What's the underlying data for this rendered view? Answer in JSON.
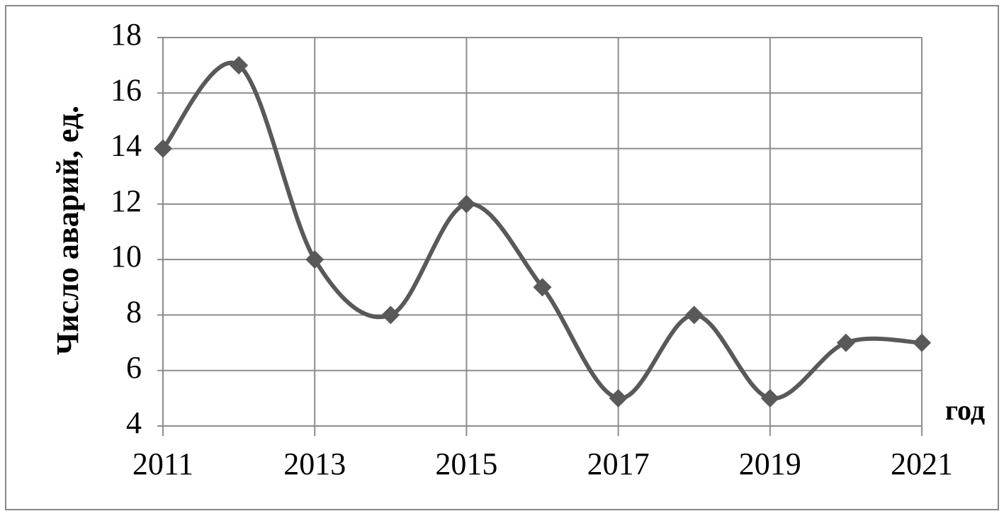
{
  "chart_data": {
    "type": "line",
    "y_label": "Число аварий, ед.",
    "x_label": "год",
    "x": [
      2011,
      2012,
      2013,
      2014,
      2015,
      2016,
      2017,
      2018,
      2019,
      2020,
      2021
    ],
    "values": [
      14,
      17,
      10,
      8,
      12,
      9,
      5,
      8,
      5,
      7,
      7
    ],
    "color": "#595959",
    "smooth": true,
    "marker": "diamond",
    "xlim": [
      2011,
      2021
    ],
    "xticks": [
      2011,
      2013,
      2015,
      2017,
      2019,
      2021
    ],
    "ylim": [
      4,
      18
    ],
    "yticks": [
      4,
      6,
      8,
      10,
      12,
      14,
      16,
      18
    ],
    "grid": true
  }
}
